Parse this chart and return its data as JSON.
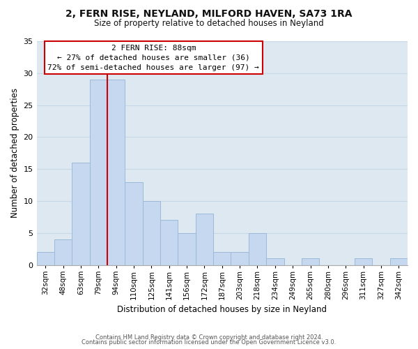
{
  "title": "2, FERN RISE, NEYLAND, MILFORD HAVEN, SA73 1RA",
  "subtitle": "Size of property relative to detached houses in Neyland",
  "xlabel": "Distribution of detached houses by size in Neyland",
  "ylabel": "Number of detached properties",
  "bar_labels": [
    "32sqm",
    "48sqm",
    "63sqm",
    "79sqm",
    "94sqm",
    "110sqm",
    "125sqm",
    "141sqm",
    "156sqm",
    "172sqm",
    "187sqm",
    "203sqm",
    "218sqm",
    "234sqm",
    "249sqm",
    "265sqm",
    "280sqm",
    "296sqm",
    "311sqm",
    "327sqm",
    "342sqm"
  ],
  "bar_values": [
    2,
    4,
    16,
    29,
    29,
    13,
    10,
    7,
    5,
    8,
    2,
    2,
    5,
    1,
    0,
    1,
    0,
    0,
    1,
    0,
    1
  ],
  "bar_color": "#c5d8f0",
  "bar_edgecolor": "#9bbad8",
  "vline_index": 3.5,
  "vline_color": "#cc0000",
  "ylim": [
    0,
    35
  ],
  "yticks": [
    0,
    5,
    10,
    15,
    20,
    25,
    30,
    35
  ],
  "annotation_title": "2 FERN RISE: 88sqm",
  "annotation_line1": "← 27% of detached houses are smaller (36)",
  "annotation_line2": "72% of semi-detached houses are larger (97) →",
  "annotation_box_color": "#ffffff",
  "annotation_box_edgecolor": "#cc0000",
  "footer_line1": "Contains HM Land Registry data © Crown copyright and database right 2024.",
  "footer_line2": "Contains public sector information licensed under the Open Government Licence v3.0.",
  "plot_bg_color": "#dde8f0",
  "background_color": "#ffffff",
  "grid_color": "#c8d8e8"
}
